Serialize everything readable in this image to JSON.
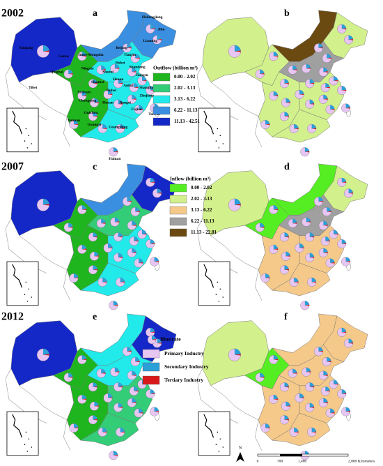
{
  "panels": [
    {
      "year": "2002",
      "letter": "a"
    },
    {
      "letter": "b"
    },
    {
      "year": "2007",
      "letter": "c"
    },
    {
      "letter": "d"
    },
    {
      "year": "2012",
      "letter": "e"
    },
    {
      "letter": "f"
    }
  ],
  "province_labels": [
    "Xinjiang",
    "Tibet",
    "Qinghai",
    "Gansu",
    "Inner-Mongolia",
    "Heilongjiang",
    "Jilin",
    "Liaoning",
    "Beijing",
    "Tianjin",
    "Hebei",
    "Ningxia",
    "Shanxi",
    "Shandong",
    "Jiangsu",
    "Shaanxi",
    "Henan",
    "Anhui",
    "Shanghai",
    "Hubei",
    "Zhejiang",
    "Sichuan",
    "Chongqing",
    "Hunan",
    "Jiangxi",
    "Fujian",
    "Taiwan",
    "Guizhou",
    "Guangxi",
    "Guangdong",
    "Yunnan",
    "Hainan"
  ],
  "outflow_legend": {
    "title": "Outflow (billion m³)",
    "classes": [
      {
        "label": "0.00 - 2.02",
        "color": "#1fb51f"
      },
      {
        "label": "2.02 - 3.13",
        "color": "#33cc77"
      },
      {
        "label": "3.13 - 6.22",
        "color": "#22eaea"
      },
      {
        "label": "6.22 - 11.13",
        "color": "#3a8fe0"
      },
      {
        "label": "11.13 - 42.51",
        "color": "#1428c8"
      }
    ]
  },
  "inflow_legend": {
    "title": "Inflow (billion m³)",
    "classes": [
      {
        "label": "0.00 - 2.02",
        "color": "#55ee22"
      },
      {
        "label": "2.02 - 3.13",
        "color": "#d2f08c"
      },
      {
        "label": "3.13 - 6.22",
        "color": "#f5c98a"
      },
      {
        "label": "6.22 - 11.13",
        "color": "#a0a0a0"
      },
      {
        "label": "11.13 - 22.81",
        "color": "#6b4a12"
      }
    ]
  },
  "pie_legend": {
    "title": "Illustrate",
    "items": [
      {
        "label": "Primary Industry",
        "color": "#e8c6f2"
      },
      {
        "label": "Secondary Industry",
        "color": "#2a9fd8"
      },
      {
        "label": "Tertiary Industry",
        "color": "#d81818"
      }
    ]
  },
  "scale_bar": {
    "labels": [
      "0",
      "700",
      "1,400",
      "2,800 Kilometers"
    ]
  },
  "north_label": "N"
}
